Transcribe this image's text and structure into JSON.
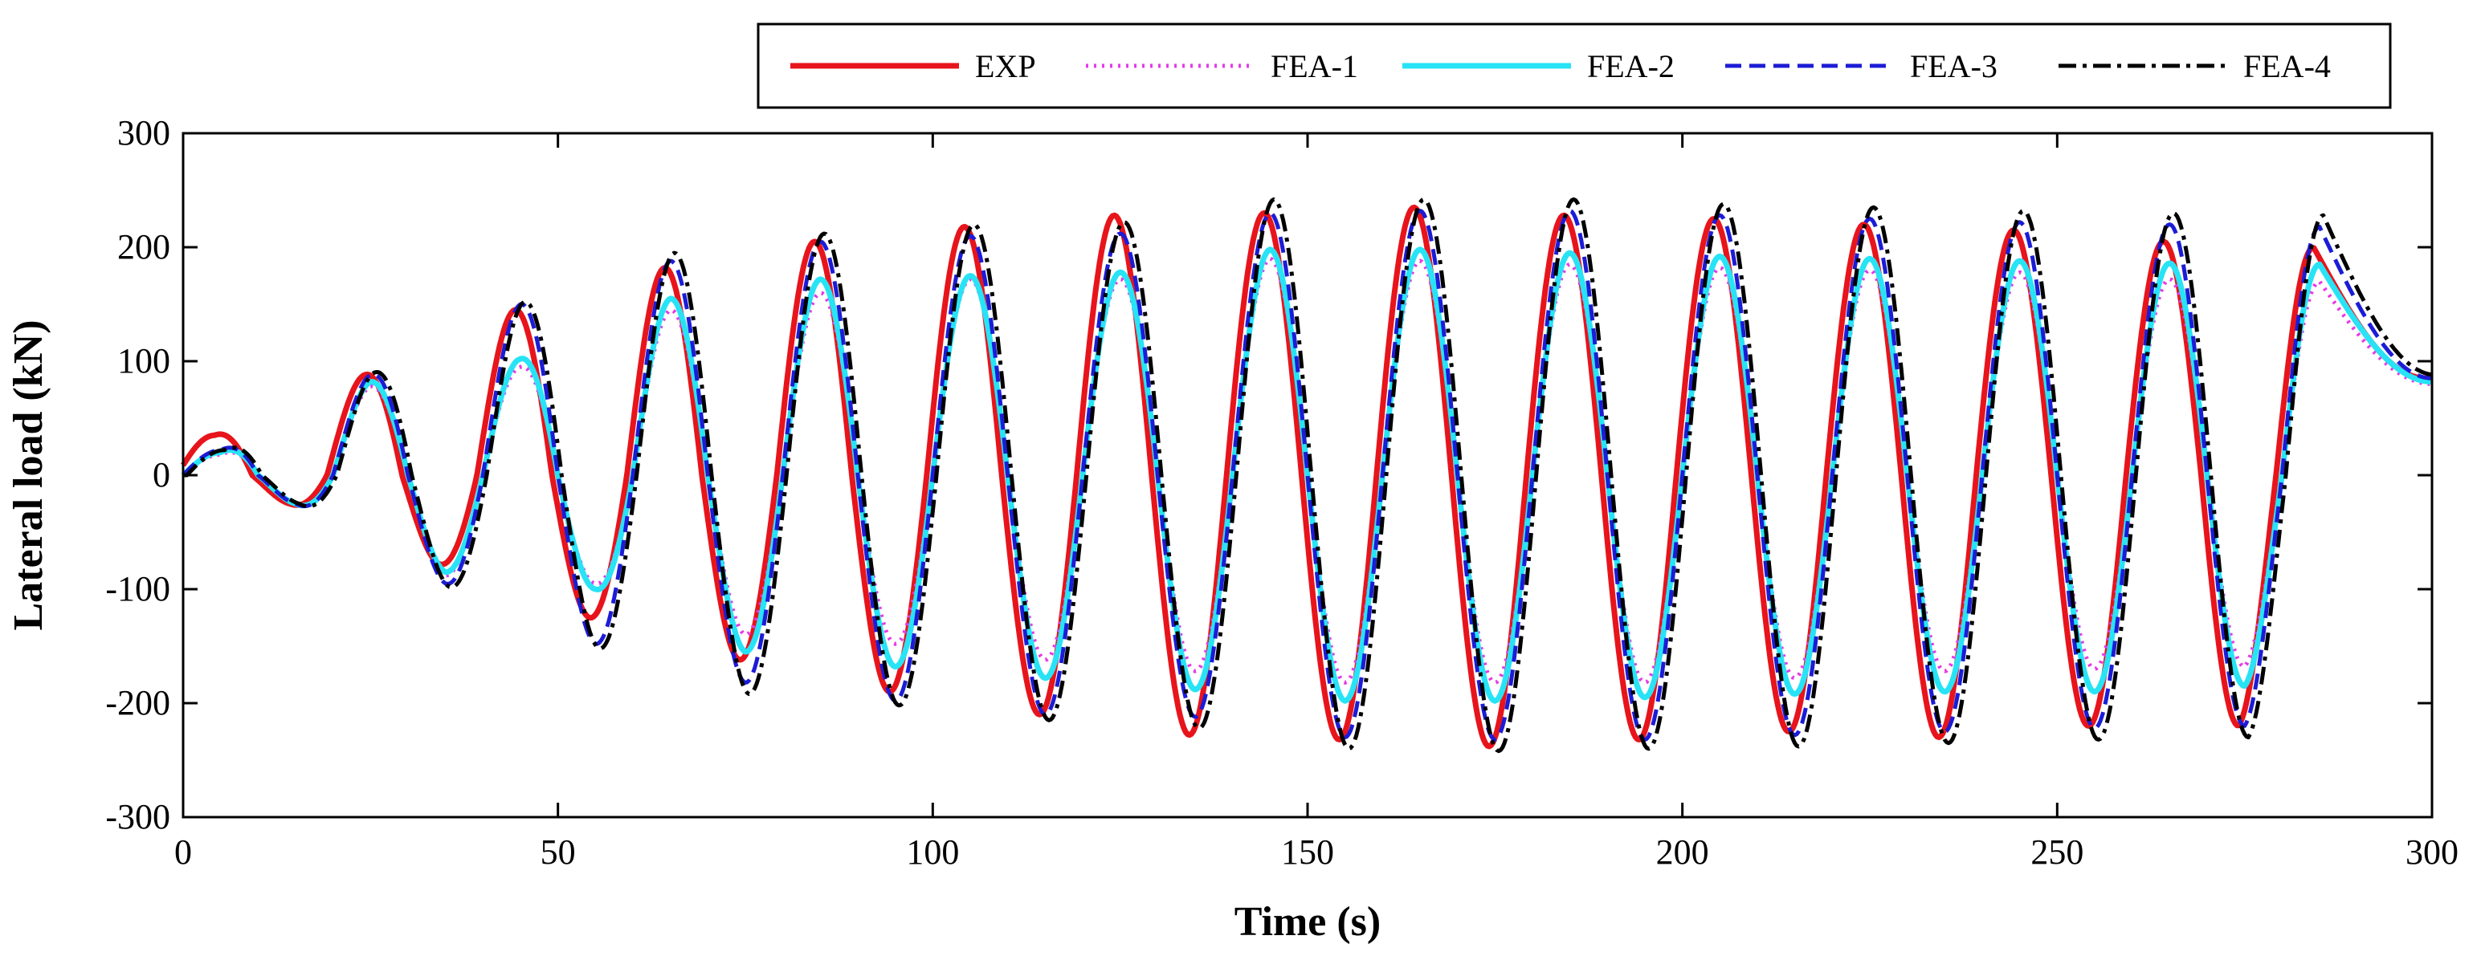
{
  "chart_data": {
    "type": "line",
    "title": "",
    "xlabel": "Time (s)",
    "ylabel": "Lateral load (kN)",
    "xlim": [
      0,
      300
    ],
    "ylim": [
      -300,
      300
    ],
    "xticks": [
      0,
      50,
      100,
      150,
      200,
      250,
      300
    ],
    "xtick_labels": [
      "0",
      "50",
      "100",
      "150",
      "200",
      "250",
      "300"
    ],
    "yticks": [
      -300,
      -200,
      -100,
      0,
      100,
      200,
      300
    ],
    "ytick_labels": [
      "-300",
      "-200",
      "-100",
      "0",
      "100",
      "200",
      "300"
    ],
    "grid": false,
    "legend_position": "top",
    "period": 20,
    "x": [
      0,
      5,
      15,
      25,
      35,
      45,
      55,
      65,
      75,
      85,
      95,
      105,
      115,
      125,
      135,
      145,
      155,
      165,
      175,
      185,
      195,
      205,
      215,
      225,
      235,
      245,
      255,
      265,
      275,
      285,
      300
    ],
    "series": [
      {
        "name": "EXP",
        "color": "#e8141b",
        "style": "solid",
        "phase_shift": -0.8,
        "values": [
          0,
          35,
          -25,
          88,
          -78,
          145,
          -125,
          182,
          -162,
          205,
          -190,
          218,
          -210,
          228,
          -228,
          230,
          -232,
          235,
          -238,
          228,
          -232,
          225,
          -225,
          220,
          -230,
          215,
          -220,
          205,
          -220,
          200,
          85
        ]
      },
      {
        "name": "FEA-1",
        "color": "#e63ae6",
        "style": "dotted",
        "phase_shift": 0,
        "values": [
          0,
          18,
          -25,
          78,
          -88,
          95,
          -95,
          145,
          -140,
          160,
          -148,
          172,
          -162,
          172,
          -172,
          190,
          -182,
          188,
          -182,
          185,
          -182,
          182,
          -178,
          180,
          -172,
          178,
          -170,
          172,
          -168,
          170,
          80
        ]
      },
      {
        "name": "FEA-2",
        "color": "#27e3f5",
        "style": "solid",
        "phase_shift": 0,
        "values": [
          0,
          20,
          -25,
          82,
          -85,
          102,
          -100,
          155,
          -155,
          172,
          -168,
          175,
          -178,
          178,
          -188,
          198,
          -198,
          198,
          -198,
          195,
          -195,
          192,
          -192,
          190,
          -190,
          188,
          -190,
          186,
          -185,
          185,
          82
        ]
      },
      {
        "name": "FEA-3",
        "color": "#1c1cd6",
        "style": "dashed",
        "phase_shift": 0,
        "values": [
          0,
          22,
          -25,
          88,
          -95,
          150,
          -148,
          188,
          -182,
          205,
          -198,
          210,
          -210,
          212,
          -212,
          230,
          -230,
          232,
          -232,
          232,
          -232,
          228,
          -228,
          225,
          -225,
          222,
          -222,
          220,
          -220,
          218,
          85
        ]
      },
      {
        "name": "FEA-4",
        "color": "#000000",
        "style": "dashdot",
        "phase_shift": 0.5,
        "values": [
          0,
          22,
          -25,
          90,
          -98,
          152,
          -152,
          195,
          -192,
          212,
          -202,
          220,
          -215,
          222,
          -222,
          242,
          -240,
          242,
          -242,
          242,
          -240,
          238,
          -238,
          235,
          -235,
          232,
          -232,
          230,
          -230,
          228,
          88
        ]
      }
    ]
  }
}
